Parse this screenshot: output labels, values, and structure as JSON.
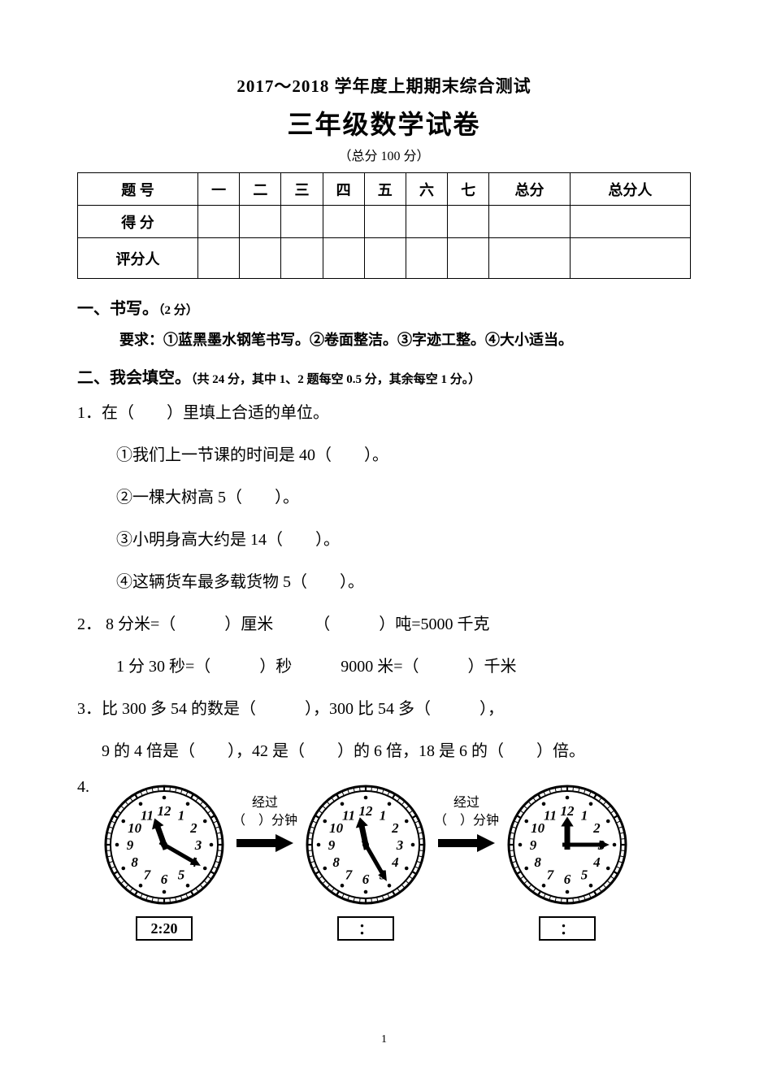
{
  "header": {
    "line1": "2017～2018 学年度上期期末综合测试",
    "line2": "三年级数学试卷",
    "line3": "（总分 100 分）"
  },
  "score_table": {
    "row1": [
      "题 号",
      "一",
      "二",
      "三",
      "四",
      "五",
      "六",
      "七",
      "总分",
      "总分人"
    ],
    "row2_label": "得 分",
    "row3_label": "评分人"
  },
  "s1": {
    "title": "一、书写。",
    "points": "（2 分）",
    "req": "要求：①蓝黑墨水钢笔书写。②卷面整洁。③字迹工整。④大小适当。"
  },
  "s2": {
    "title": "二、我会填空。",
    "points": "（共 24 分，其中 1、2 题每空 0.5 分，其余每空 1 分。）"
  },
  "q1": {
    "stem": "1．在（　　）里填上合适的单位。",
    "a": "①我们上一节课的时间是 40（　　）。",
    "b": "②一棵大树高 5（　　）。",
    "c": "③小明身高大约是 14（　　）。",
    "d": "④这辆货车最多载货物 5（　　）。"
  },
  "q2": {
    "line1": "2．  8 分米=（　　　）厘米　　　（　　　）吨=5000 千克",
    "line2": "1 分 30 秒=（　　　）秒　　　9000 米=（　　　）千米"
  },
  "q3": {
    "line1": "3．比 300 多 54 的数是（　　　），300 比 54 多（　　　），",
    "line2": "9 的 4 倍是（　　），42 是（　　）的 6 倍，18 是 6 的（　　）倍。"
  },
  "q4": {
    "label": "4."
  },
  "clocks": {
    "items": [
      {
        "hour_angle": -20,
        "minute_angle": 120,
        "time_label": "2:20"
      },
      {
        "hour_angle": -12,
        "minute_angle": 150,
        "time_label": "："
      },
      {
        "hour_angle": 0,
        "minute_angle": 90,
        "time_label": "："
      }
    ],
    "arrow_top": "经过",
    "arrow_bottom": "（　）分钟",
    "face_radius": 72,
    "tick_color": "#000000",
    "hand_color": "#000000",
    "numbers": [
      "12",
      "1",
      "2",
      "3",
      "4",
      "5",
      "6",
      "7",
      "8",
      "9",
      "10",
      "11"
    ]
  },
  "page_number": "1"
}
